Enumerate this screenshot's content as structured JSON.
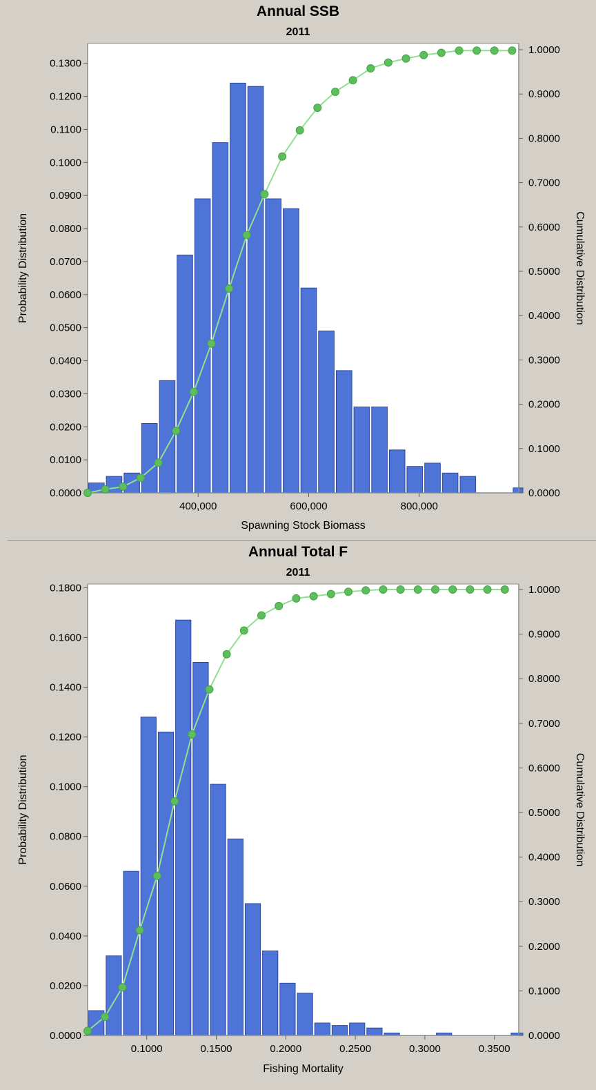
{
  "chart_data": [
    {
      "type": "bar",
      "title": "Annual SSB",
      "subtitle": "2011",
      "xlabel": "Spawning Stock Biomass",
      "ylabel": "Probability Distribution",
      "y2label": "Cumulative Distribution",
      "xlim": [
        200000,
        980000
      ],
      "ylim": [
        0,
        0.136
      ],
      "y2lim": [
        0,
        1.0
      ],
      "xticks": [
        400000,
        600000,
        800000
      ],
      "xtick_labels": [
        "400,000",
        "600,000",
        "800,000"
      ],
      "yticks": [
        0,
        0.01,
        0.02,
        0.03,
        0.04,
        0.05,
        0.06,
        0.07,
        0.08,
        0.09,
        0.1,
        0.11,
        0.12,
        0.13
      ],
      "ytick_labels": [
        "0.0000",
        "0.0100",
        "0.0200",
        "0.0300",
        "0.0400",
        "0.0500",
        "0.0600",
        "0.0700",
        "0.0800",
        "0.0900",
        "0.1000",
        "0.1100",
        "0.1200",
        "0.1300"
      ],
      "y2ticks": [
        0,
        0.1,
        0.2,
        0.3,
        0.4,
        0.5,
        0.6,
        0.7,
        0.8,
        0.9,
        1.0
      ],
      "y2tick_labels": [
        "0.0000",
        "0.1000",
        "0.2000",
        "0.3000",
        "0.4000",
        "0.5000",
        "0.6000",
        "0.7000",
        "0.8000",
        "0.9000",
        "1.0000"
      ],
      "bin_width": 32000,
      "bar_color": "#4f74d8",
      "line_color": "#90e090",
      "marker_color": "#5cbf5c",
      "series": [
        {
          "kind": "bar",
          "x": [
            216000,
            248000,
            280000,
            312000,
            344000,
            376000,
            408000,
            440000,
            472000,
            504000,
            536000,
            568000,
            600000,
            632000,
            664000,
            696000,
            728000,
            760000,
            792000,
            824000,
            856000,
            888000,
            920000,
            952000,
            984000
          ],
          "values": [
            0.003,
            0.005,
            0.006,
            0.021,
            0.034,
            0.072,
            0.089,
            0.106,
            0.124,
            0.123,
            0.089,
            0.086,
            0.062,
            0.049,
            0.037,
            0.026,
            0.026,
            0.013,
            0.008,
            0.009,
            0.006,
            0.005,
            0.0,
            0.0,
            0.0015
          ]
        },
        {
          "kind": "line",
          "x": [
            200000,
            232000,
            264000,
            296000,
            328000,
            360000,
            392000,
            424000,
            456000,
            488000,
            520000,
            552000,
            584000,
            616000,
            648000,
            680000,
            712000,
            744000,
            776000,
            808000,
            840000,
            872000,
            904000,
            936000,
            968000
          ],
          "values": [
            0.0,
            0.008,
            0.014,
            0.034,
            0.068,
            0.14,
            0.228,
            0.337,
            0.461,
            0.582,
            0.674,
            0.759,
            0.818,
            0.869,
            0.905,
            0.931,
            0.958,
            0.971,
            0.98,
            0.988,
            0.993,
            0.998,
            0.998,
            0.998,
            0.998
          ]
        }
      ]
    },
    {
      "type": "bar",
      "title": "Annual Total F",
      "subtitle": "2011",
      "xlabel": "Fishing Mortality",
      "ylabel": "Probability Distribution",
      "y2label": "Cumulative Distribution",
      "xlim": [
        0.0575,
        0.3675
      ],
      "ylim": [
        0,
        0.1815
      ],
      "y2lim": [
        0,
        1.0
      ],
      "xticks": [
        0.1,
        0.15,
        0.2,
        0.25,
        0.3,
        0.35
      ],
      "xtick_labels": [
        "0.1000",
        "0.1500",
        "0.2000",
        "0.2500",
        "0.3000",
        "0.3500"
      ],
      "yticks": [
        0,
        0.02,
        0.04,
        0.06,
        0.08,
        0.1,
        0.12,
        0.14,
        0.16,
        0.18
      ],
      "ytick_labels": [
        "0.0000",
        "0.0200",
        "0.0400",
        "0.0600",
        "0.0800",
        "0.1000",
        "0.1200",
        "0.1400",
        "0.1600",
        "0.1800"
      ],
      "y2ticks": [
        0,
        0.1,
        0.2,
        0.3,
        0.4,
        0.5,
        0.6,
        0.7,
        0.8,
        0.9,
        1.0
      ],
      "y2tick_labels": [
        "0.0000",
        "0.1000",
        "0.2000",
        "0.3000",
        "0.4000",
        "0.5000",
        "0.6000",
        "0.7000",
        "0.8000",
        "0.9000",
        "1.0000"
      ],
      "bin_width": 0.0125,
      "bar_color": "#4f74d8",
      "line_color": "#90e090",
      "marker_color": "#5cbf5c",
      "series": [
        {
          "kind": "bar",
          "x": [
            0.0638,
            0.0763,
            0.0888,
            0.1013,
            0.1138,
            0.1263,
            0.1388,
            0.1513,
            0.1638,
            0.1763,
            0.1888,
            0.2013,
            0.2138,
            0.2263,
            0.2388,
            0.2513,
            0.2638,
            0.2763,
            0.2888,
            0.3013,
            0.3138,
            0.3263,
            0.3388,
            0.3513,
            0.3675
          ],
          "values": [
            0.01,
            0.032,
            0.066,
            0.128,
            0.122,
            0.167,
            0.15,
            0.101,
            0.079,
            0.053,
            0.034,
            0.021,
            0.017,
            0.005,
            0.004,
            0.005,
            0.003,
            0.001,
            0.0,
            0.0,
            0.001,
            0.0,
            0.0,
            0.0,
            0.001
          ]
        },
        {
          "kind": "line",
          "x": [
            0.0575,
            0.07,
            0.0825,
            0.095,
            0.1075,
            0.12,
            0.1325,
            0.145,
            0.1575,
            0.17,
            0.1825,
            0.195,
            0.2075,
            0.22,
            0.2325,
            0.245,
            0.2575,
            0.27,
            0.2825,
            0.295,
            0.3075,
            0.32,
            0.3325,
            0.345,
            0.3575
          ],
          "values": [
            0.01,
            0.042,
            0.108,
            0.236,
            0.358,
            0.525,
            0.675,
            0.776,
            0.855,
            0.908,
            0.942,
            0.963,
            0.98,
            0.985,
            0.99,
            0.995,
            0.998,
            1.0,
            1.0,
            1.0,
            1.0,
            1.0,
            1.0,
            1.0,
            1.0
          ]
        }
      ]
    }
  ]
}
